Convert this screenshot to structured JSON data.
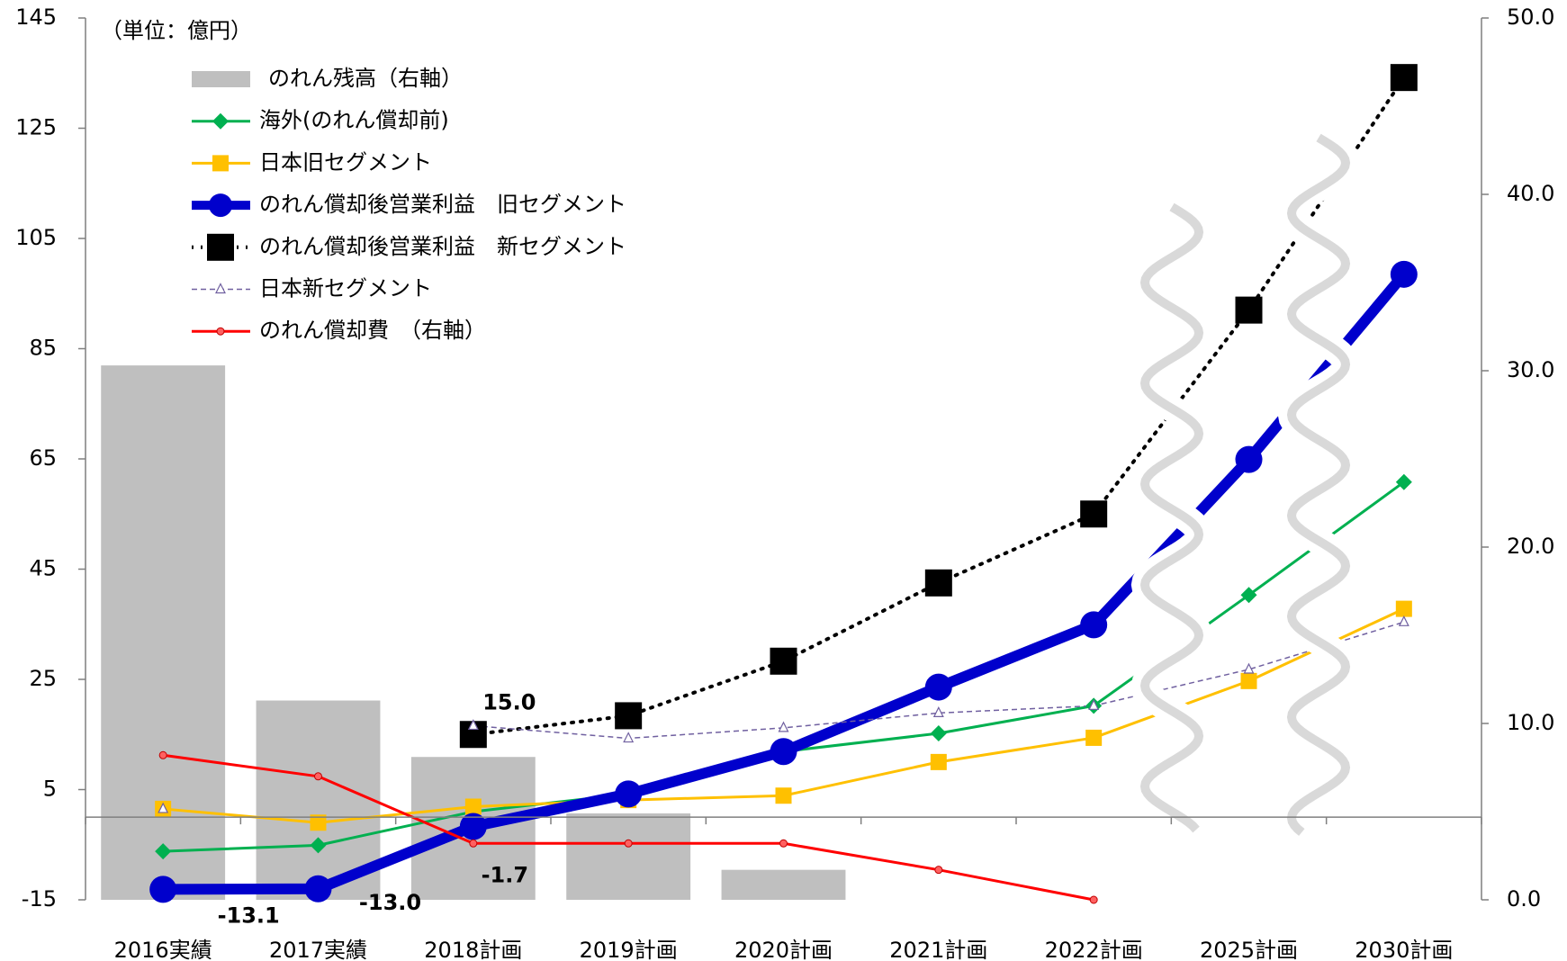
{
  "chart_data": {
    "type": "combo",
    "annotation": "（単位：億円）",
    "categories": [
      "2016実績",
      "2017実績",
      "2018計画",
      "2019計画",
      "2020計画",
      "2021計画",
      "2022計画",
      "2025計画",
      "2030計画"
    ],
    "ylim": [
      -15,
      145
    ],
    "yticks": [
      -15,
      5,
      25,
      45,
      65,
      85,
      105,
      125,
      145
    ],
    "y2lim": [
      0,
      50
    ],
    "y2ticks": [
      {
        "value": 0,
        "label": "0.0"
      },
      {
        "value": 10,
        "label": "10.0"
      },
      {
        "value": 20,
        "label": "20.0"
      },
      {
        "value": 30,
        "label": "30.0"
      },
      {
        "value": 40,
        "label": "40.0"
      },
      {
        "value": 50,
        "label": "50.0"
      }
    ],
    "legend": "upper left",
    "series": [
      {
        "name": "のれん残高（右軸）",
        "type": "bar",
        "axis": "y2",
        "color": "#bfbfbf",
        "values": [
          30.3,
          11.3,
          8.1,
          4.9,
          1.7,
          null,
          null,
          null,
          null
        ]
      },
      {
        "name": "海外(のれん償却前)",
        "type": "line",
        "color": "#00b050",
        "marker": "diamond",
        "line": "solid",
        "values": [
          -6.2,
          -5.1,
          1,
          4.2,
          11.9,
          15.2,
          20.2,
          40.3,
          60.8
        ]
      },
      {
        "name": "日本旧セグメント",
        "type": "line",
        "color": "#ffc000",
        "marker": "square",
        "line": "solid",
        "values": [
          1.5,
          -1,
          1.9,
          3.1,
          3.9,
          10,
          14.4,
          24.7,
          37.8
        ]
      },
      {
        "name": "のれん償却後営業利益　旧セグメント",
        "type": "line",
        "color": "#0000cc",
        "marker": "circle",
        "line": "solid",
        "values": [
          -13.1,
          -13,
          -1.7,
          4.2,
          11.9,
          23.6,
          34.9,
          64.9,
          98.5
        ],
        "value_labels": [
          "-13.1",
          "-13.0",
          "-1.7",
          null,
          null,
          null,
          null,
          null,
          null
        ],
        "label_color": "#ff0000"
      },
      {
        "name": "のれん償却後営業利益　新セグメント",
        "type": "line",
        "color": "#000000",
        "marker": "square",
        "line": "dotted",
        "values": [
          null,
          null,
          15,
          18.4,
          28.3,
          42.5,
          55,
          92,
          134.2
        ],
        "value_labels": [
          null,
          null,
          "15.0",
          null,
          null,
          null,
          null,
          null,
          null
        ],
        "label_color": "#000000"
      },
      {
        "name": "日本新セグメント",
        "type": "line",
        "color": "#7060a0",
        "marker": "triangle",
        "line": "dashed",
        "values": [
          1.5,
          null,
          16.6,
          14.3,
          16.2,
          18.9,
          20.2,
          26.8,
          35.4
        ]
      },
      {
        "name": "のれん償却費　（右軸）",
        "type": "line",
        "axis": "y2",
        "color": "#ff0000",
        "marker": "dot",
        "line": "solid",
        "values": [
          8.2,
          7.0,
          3.2,
          3.2,
          3.2,
          1.7,
          0,
          null,
          null
        ]
      }
    ]
  }
}
